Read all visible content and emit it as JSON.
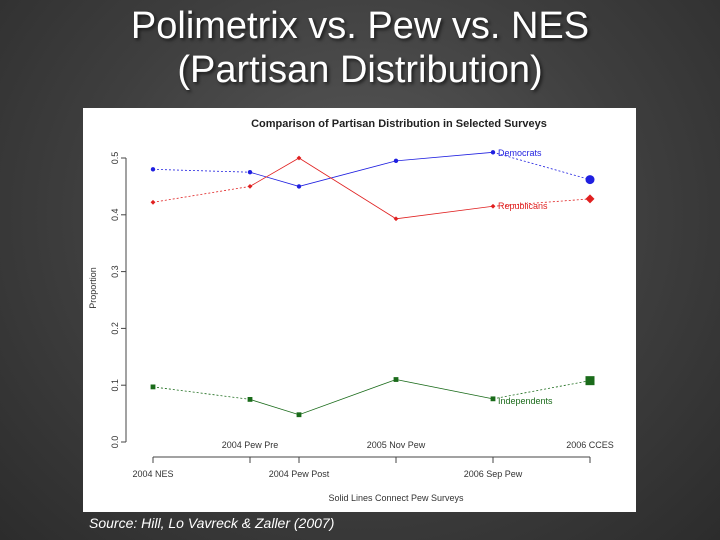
{
  "slide": {
    "title_line1": "Polimetrix vs. Pew vs. NES",
    "title_line2": "(Partisan Distribution)",
    "source": "Source: Hill, Lo Vavreck & Zaller (2007)"
  },
  "chart_data": {
    "type": "line",
    "title": "Comparison of Partisan Distribution in Selected Surveys",
    "xlabel": "Solid Lines Connect Pew Surveys",
    "ylabel": "Proportion",
    "categories": [
      "2004 NES",
      "2004 Pew Pre",
      "2004 Pew Post",
      "2005 Nov Pew",
      "2006 Sep Pew",
      "2006 CCES"
    ],
    "x_tick_labels_top": [
      "2004 Pew Pre",
      "2005 Nov Pew",
      "2006 CCES"
    ],
    "x_tick_labels_bottom": [
      "2004 NES",
      "2004 Pew Post",
      "2006 Sep Pew"
    ],
    "ylim": [
      0,
      0.5
    ],
    "yticks": [
      "0.0",
      "0.1",
      "0.2",
      "0.3",
      "0.4",
      "0.5"
    ],
    "grid": false,
    "series": [
      {
        "name": "Democrats",
        "color": "#1f1fe0",
        "marker": "circle",
        "values": [
          0.48,
          0.475,
          0.45,
          0.495,
          0.51,
          0.462
        ]
      },
      {
        "name": "Republicans",
        "color": "#e02020",
        "marker": "diamond",
        "values": [
          0.422,
          0.45,
          0.5,
          0.393,
          0.415,
          0.428
        ]
      },
      {
        "name": "Independents",
        "color": "#1a6b1a",
        "marker": "square",
        "values": [
          0.097,
          0.075,
          0.048,
          0.11,
          0.076,
          0.108
        ]
      }
    ]
  }
}
